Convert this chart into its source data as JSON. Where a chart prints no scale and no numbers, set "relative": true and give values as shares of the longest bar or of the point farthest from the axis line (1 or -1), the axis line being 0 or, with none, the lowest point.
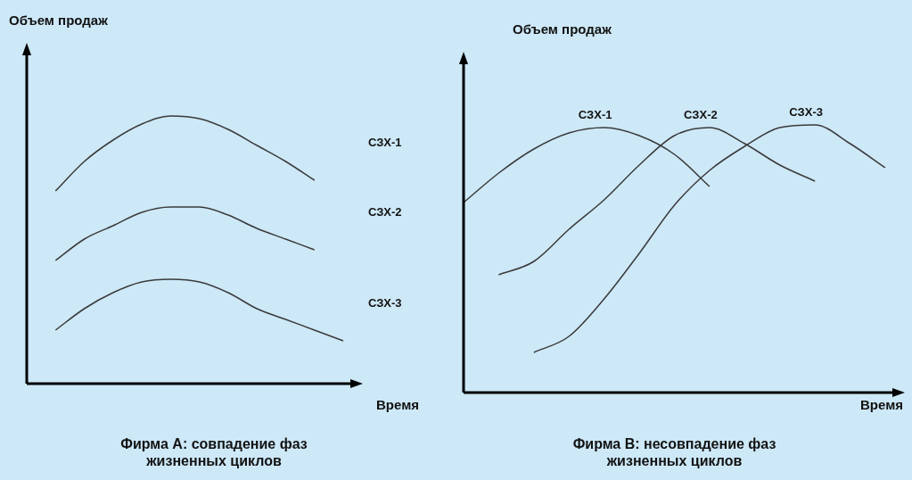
{
  "chart_data": [
    {
      "type": "line",
      "title": "Фирма А: совпадение фаз жизненных циклов",
      "xlabel": "Время",
      "ylabel": "Объем продаж",
      "relative": true,
      "legend": false,
      "marker": "none",
      "line_style": "solid",
      "categories": [
        null,
        null,
        null,
        null,
        null,
        null,
        null,
        null,
        null,
        null,
        null,
        null
      ],
      "series": [
        {
          "name": "СЗХ-1",
          "color": "#3a3a3a",
          "values": [
            null,
            0.72,
            0.83,
            0.91,
            0.97,
            1.0,
            0.99,
            0.95,
            0.89,
            0.83,
            0.76,
            null
          ]
        },
        {
          "name": "СЗХ-2",
          "color": "#3a3a3a",
          "values": [
            null,
            0.46,
            0.54,
            0.59,
            0.64,
            0.66,
            0.66,
            0.63,
            0.58,
            0.54,
            0.5,
            null
          ]
        },
        {
          "name": "СЗХ-3",
          "color": "#3a3a3a",
          "values": [
            null,
            0.2,
            0.28,
            0.34,
            0.38,
            0.39,
            0.38,
            0.34,
            0.28,
            0.24,
            0.2,
            0.16
          ]
        }
      ]
    },
    {
      "type": "line",
      "title": "Фирма В: несовпадение фаз жизненных циклов",
      "xlabel": "Время",
      "ylabel": "Объем продаж",
      "relative": true,
      "legend": false,
      "marker": "none",
      "line_style": "solid",
      "categories": [
        null,
        null,
        null,
        null,
        null,
        null,
        null,
        null,
        null,
        null,
        null,
        null,
        null
      ],
      "series": [
        {
          "name": "СЗХ-1",
          "color": "#3a3a3a",
          "values": [
            0.71,
            0.82,
            0.91,
            0.97,
            0.99,
            0.96,
            0.89,
            0.77,
            null,
            null,
            null,
            null,
            null
          ]
        },
        {
          "name": "СЗХ-2",
          "color": "#3a3a3a",
          "values": [
            null,
            0.44,
            0.49,
            0.61,
            0.72,
            0.85,
            0.96,
            0.99,
            0.93,
            0.85,
            0.79,
            null,
            null
          ]
        },
        {
          "name": "СЗХ-3",
          "color": "#3a3a3a",
          "values": [
            null,
            null,
            0.15,
            0.21,
            0.35,
            0.52,
            0.7,
            0.83,
            0.92,
            0.99,
            1.0,
            0.93,
            0.84
          ]
        }
      ]
    }
  ]
}
